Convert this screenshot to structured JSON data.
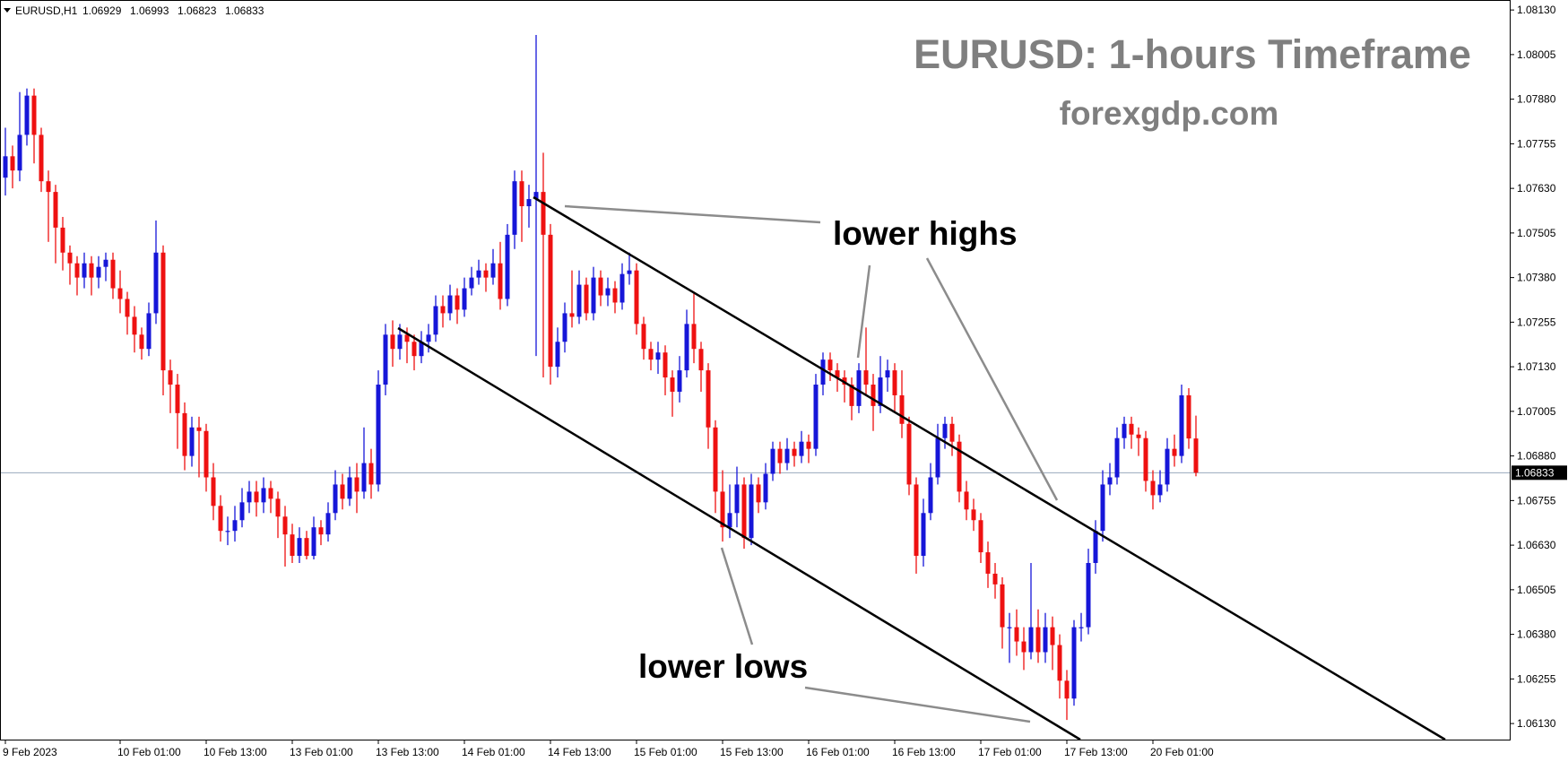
{
  "chart_data": {
    "type": "candlestick",
    "title": "EURUSD: 1-hours Timeframe",
    "subtitle": "forexgdp.com",
    "symbol": "EURUSD,H1",
    "header_ohlc": [
      1.06929,
      1.06993,
      1.06823,
      1.06833
    ],
    "current_price": 1.06833,
    "annotations": [
      "lower highs",
      "lower lows"
    ],
    "up_color": "#1616d8",
    "down_color": "#ee1111",
    "current_price_line_color": "#9aa9bd",
    "ylim": [
      1.06085,
      1.08158
    ],
    "yticks": [
      {
        "value": 1.0613,
        "label": "1.06130"
      },
      1.06255,
      {
        "value": 1.0638,
        "label": "1.06380"
      },
      1.06505,
      {
        "value": 1.0663,
        "label": "1.06630"
      },
      1.06755,
      {
        "value": 1.0688,
        "label": "1.06880"
      },
      1.07005,
      {
        "value": 1.0713,
        "label": "1.07130"
      },
      1.07255,
      {
        "value": 1.0738,
        "label": "1.07380"
      },
      1.07505,
      {
        "value": 1.0763,
        "label": "1.07630"
      },
      1.07755,
      {
        "value": 1.0788,
        "label": "1.07880"
      },
      1.08005,
      {
        "value": 1.0813,
        "label": "1.08130"
      }
    ],
    "xticks": [
      {
        "value": 0,
        "label": "9 Feb 2023"
      },
      {
        "value": 16,
        "label": "10 Feb 01:00"
      },
      {
        "value": 28,
        "label": "10 Feb 13:00"
      },
      {
        "value": 40,
        "label": "13 Feb 01:00"
      },
      {
        "value": 52,
        "label": "13 Feb 13:00"
      },
      {
        "value": 64,
        "label": "14 Feb 01:00"
      },
      {
        "value": 76,
        "label": "14 Feb 13:00"
      },
      {
        "value": 88,
        "label": "15 Feb 01:00"
      },
      {
        "value": 100,
        "label": "15 Feb 13:00"
      },
      {
        "value": 112,
        "label": "16 Feb 01:00"
      },
      {
        "value": 124,
        "label": "16 Feb 13:00"
      },
      {
        "value": 136,
        "label": "17 Feb 01:00"
      },
      {
        "value": 148,
        "label": "17 Feb 13:00"
      },
      {
        "value": 160,
        "label": "20 Feb 01:00"
      }
    ],
    "candles": [
      [
        1.0766,
        1.078,
        1.0761,
        1.0772
      ],
      [
        1.0772,
        1.0775,
        1.0763,
        1.0768
      ],
      [
        1.0768,
        1.079,
        1.0765,
        1.0778
      ],
      [
        1.0778,
        1.0791,
        1.0775,
        1.0789
      ],
      [
        1.0789,
        1.0791,
        1.077,
        1.0778
      ],
      [
        1.0778,
        1.078,
        1.0762,
        1.0765
      ],
      [
        1.0765,
        1.0768,
        1.0748,
        1.0762
      ],
      [
        1.0762,
        1.0764,
        1.0742,
        1.0752
      ],
      [
        1.0752,
        1.0755,
        1.074,
        1.0745
      ],
      [
        1.0745,
        1.0747,
        1.0736,
        1.0742
      ],
      [
        1.0742,
        1.0744,
        1.0733,
        1.0738
      ],
      [
        1.0738,
        1.0745,
        1.0735,
        1.0742
      ],
      [
        1.0742,
        1.0744,
        1.0733,
        1.0738
      ],
      [
        1.0738,
        1.0744,
        1.0735,
        1.0741
      ],
      [
        1.0741,
        1.0745,
        1.0737,
        1.0743
      ],
      [
        1.0743,
        1.0745,
        1.0732,
        1.0735
      ],
      [
        1.0735,
        1.074,
        1.0728,
        1.0732
      ],
      [
        1.0732,
        1.0734,
        1.0722,
        1.0727
      ],
      [
        1.0727,
        1.073,
        1.0717,
        1.0722
      ],
      [
        1.0722,
        1.0724,
        1.0715,
        1.0718
      ],
      [
        1.0718,
        1.0731,
        1.0716,
        1.0728
      ],
      [
        1.0728,
        1.0754,
        1.0725,
        1.0745
      ],
      [
        1.0745,
        1.0747,
        1.0705,
        1.0712
      ],
      [
        1.0712,
        1.0715,
        1.07,
        1.0708
      ],
      [
        1.0708,
        1.0711,
        1.069,
        1.07
      ],
      [
        1.07,
        1.0703,
        1.0684,
        1.0688
      ],
      [
        1.0688,
        1.0699,
        1.0685,
        1.0696
      ],
      [
        1.0696,
        1.0699,
        1.0682,
        1.0695
      ],
      [
        1.0695,
        1.0697,
        1.0678,
        1.0682
      ],
      [
        1.0682,
        1.0686,
        1.067,
        1.0674
      ],
      [
        1.0674,
        1.0677,
        1.0664,
        1.0667
      ],
      [
        1.0667,
        1.0671,
        1.0663,
        1.0667
      ],
      [
        1.0667,
        1.0674,
        1.0664,
        1.067
      ],
      [
        1.067,
        1.0679,
        1.0668,
        1.0675
      ],
      [
        1.0675,
        1.0681,
        1.0672,
        1.0678
      ],
      [
        1.0678,
        1.0681,
        1.0671,
        1.0675
      ],
      [
        1.0675,
        1.0682,
        1.0672,
        1.0679
      ],
      [
        1.0679,
        1.0681,
        1.0672,
        1.0676
      ],
      [
        1.0676,
        1.0678,
        1.0665,
        1.0671
      ],
      [
        1.0671,
        1.0674,
        1.0657,
        1.0666
      ],
      [
        1.0666,
        1.0669,
        1.0658,
        1.066
      ],
      [
        1.066,
        1.0668,
        1.0658,
        1.0665
      ],
      [
        1.0665,
        1.0667,
        1.0659,
        1.066
      ],
      [
        1.066,
        1.0671,
        1.0659,
        1.0668
      ],
      [
        1.0668,
        1.067,
        1.0663,
        1.0666
      ],
      [
        1.0666,
        1.0675,
        1.0664,
        1.0672
      ],
      [
        1.0672,
        1.0684,
        1.067,
        1.068
      ],
      [
        1.068,
        1.0683,
        1.0673,
        1.0676
      ],
      [
        1.0676,
        1.0685,
        1.0674,
        1.0682
      ],
      [
        1.0682,
        1.0686,
        1.0672,
        1.0678
      ],
      [
        1.0678,
        1.0696,
        1.0676,
        1.0686
      ],
      [
        1.0686,
        1.069,
        1.0676,
        1.068
      ],
      [
        1.068,
        1.0712,
        1.0678,
        1.0708
      ],
      [
        1.0708,
        1.0725,
        1.0705,
        1.0722
      ],
      [
        1.0722,
        1.0726,
        1.0713,
        1.0718
      ],
      [
        1.0718,
        1.0725,
        1.0715,
        1.0722
      ],
      [
        1.0722,
        1.0724,
        1.0714,
        1.072
      ],
      [
        1.072,
        1.0722,
        1.0712,
        1.0716
      ],
      [
        1.0716,
        1.0723,
        1.0714,
        1.072
      ],
      [
        1.072,
        1.0725,
        1.0717,
        1.0722
      ],
      [
        1.0722,
        1.0733,
        1.072,
        1.073
      ],
      [
        1.073,
        1.0733,
        1.0724,
        1.0728
      ],
      [
        1.0728,
        1.0736,
        1.0726,
        1.0733
      ],
      [
        1.0733,
        1.0735,
        1.0725,
        1.0729
      ],
      [
        1.0729,
        1.0738,
        1.0727,
        1.0735
      ],
      [
        1.0735,
        1.0741,
        1.0733,
        1.0738
      ],
      [
        1.0738,
        1.0743,
        1.0736,
        1.074
      ],
      [
        1.074,
        1.0742,
        1.0734,
        1.0738
      ],
      [
        1.0738,
        1.0746,
        1.0736,
        1.0742
      ],
      [
        1.0742,
        1.0748,
        1.0729,
        1.0732
      ],
      [
        1.0732,
        1.0753,
        1.073,
        1.075
      ],
      [
        1.075,
        1.0768,
        1.0746,
        1.0765
      ],
      [
        1.0765,
        1.0768,
        1.0748,
        1.0758
      ],
      [
        1.0758,
        1.0764,
        1.0752,
        1.076
      ],
      [
        1.076,
        1.0806,
        1.0716,
        1.0762
      ],
      [
        1.0762,
        1.0773,
        1.071,
        1.075
      ],
      [
        1.075,
        1.0753,
        1.0708,
        1.0713
      ],
      [
        1.0713,
        1.0724,
        1.071,
        1.072
      ],
      [
        1.072,
        1.0731,
        1.0717,
        1.0728
      ],
      [
        1.0728,
        1.074,
        1.0724,
        1.0727
      ],
      [
        1.0727,
        1.074,
        1.0725,
        1.0736
      ],
      [
        1.0736,
        1.0738,
        1.0726,
        1.0728
      ],
      [
        1.0728,
        1.0741,
        1.0726,
        1.0738
      ],
      [
        1.0738,
        1.074,
        1.073,
        1.0733
      ],
      [
        1.0733,
        1.0738,
        1.073,
        1.0735
      ],
      [
        1.0735,
        1.0737,
        1.0728,
        1.0731
      ],
      [
        1.0731,
        1.0742,
        1.0729,
        1.0739
      ],
      [
        1.0739,
        1.0745,
        1.0736,
        1.074
      ],
      [
        1.074,
        1.0742,
        1.0722,
        1.0725
      ],
      [
        1.0725,
        1.0727,
        1.0715,
        1.0718
      ],
      [
        1.0718,
        1.072,
        1.0712,
        1.0715
      ],
      [
        1.0715,
        1.072,
        1.0711,
        1.0717
      ],
      [
        1.0717,
        1.0719,
        1.0705,
        1.071
      ],
      [
        1.071,
        1.0712,
        1.0699,
        1.0706
      ],
      [
        1.0706,
        1.0716,
        1.0703,
        1.0712
      ],
      [
        1.0712,
        1.0729,
        1.071,
        1.0725
      ],
      [
        1.0725,
        1.0734,
        1.0714,
        1.0718
      ],
      [
        1.0718,
        1.072,
        1.0706,
        1.0712
      ],
      [
        1.0712,
        1.0714,
        1.069,
        1.0696
      ],
      [
        1.0696,
        1.0698,
        1.0672,
        1.0678
      ],
      [
        1.0678,
        1.0684,
        1.0664,
        1.0668
      ],
      [
        1.0668,
        1.068,
        1.0665,
        1.0672
      ],
      [
        1.0672,
        1.0685,
        1.0668,
        1.068
      ],
      [
        1.068,
        1.0682,
        1.0662,
        1.0665
      ],
      [
        1.0665,
        1.0683,
        1.0663,
        1.068
      ],
      [
        1.068,
        1.0682,
        1.0672,
        1.0675
      ],
      [
        1.0675,
        1.0686,
        1.0673,
        1.0683
      ],
      [
        1.0683,
        1.0692,
        1.0681,
        1.069
      ],
      [
        1.069,
        1.0692,
        1.0683,
        1.0686
      ],
      [
        1.0686,
        1.0693,
        1.0684,
        1.069
      ],
      [
        1.069,
        1.0692,
        1.0685,
        1.0688
      ],
      [
        1.0688,
        1.0695,
        1.0686,
        1.0692
      ],
      [
        1.0692,
        1.0694,
        1.0686,
        1.069
      ],
      [
        1.069,
        1.0711,
        1.0688,
        1.0708
      ],
      [
        1.0708,
        1.0717,
        1.0705,
        1.0715
      ],
      [
        1.0715,
        1.0717,
        1.0709,
        1.0712
      ],
      [
        1.0712,
        1.0714,
        1.0706,
        1.071
      ],
      [
        1.071,
        1.0712,
        1.0703,
        1.0708
      ],
      [
        1.0708,
        1.071,
        1.0698,
        1.0702
      ],
      [
        1.0702,
        1.0714,
        1.07,
        1.0712
      ],
      [
        1.0712,
        1.0724,
        1.0705,
        1.0708
      ],
      [
        1.0708,
        1.0711,
        1.0695,
        1.0702
      ],
      [
        1.0702,
        1.0716,
        1.07,
        1.071
      ],
      [
        1.071,
        1.0715,
        1.0706,
        1.0712
      ],
      [
        1.0712,
        1.0714,
        1.07,
        1.0705
      ],
      [
        1.0705,
        1.0712,
        1.0693,
        1.0697
      ],
      [
        1.0697,
        1.0699,
        1.0677,
        1.068
      ],
      [
        1.068,
        1.0682,
        1.0655,
        1.066
      ],
      [
        1.066,
        1.0676,
        1.0657,
        1.0672
      ],
      [
        1.0672,
        1.0686,
        1.067,
        1.0682
      ],
      [
        1.0682,
        1.0697,
        1.068,
        1.0693
      ],
      [
        1.0693,
        1.0699,
        1.069,
        1.0697
      ],
      [
        1.0697,
        1.0699,
        1.0688,
        1.0692
      ],
      [
        1.0692,
        1.0694,
        1.0675,
        1.0678
      ],
      [
        1.0678,
        1.0681,
        1.067,
        1.0673
      ],
      [
        1.0673,
        1.0676,
        1.0667,
        1.067
      ],
      [
        1.067,
        1.0672,
        1.0658,
        1.0661
      ],
      [
        1.0661,
        1.0664,
        1.0651,
        1.0655
      ],
      [
        1.0655,
        1.0658,
        1.0648,
        1.0652
      ],
      [
        1.0652,
        1.0654,
        1.0634,
        1.064
      ],
      [
        1.064,
        1.0644,
        1.063,
        1.064
      ],
      [
        1.064,
        1.0645,
        1.0632,
        1.0636
      ],
      [
        1.0636,
        1.064,
        1.0628,
        1.0633
      ],
      [
        1.0633,
        1.0658,
        1.0631,
        1.064
      ],
      [
        1.064,
        1.0645,
        1.063,
        1.0633
      ],
      [
        1.0633,
        1.0644,
        1.063,
        1.064
      ],
      [
        1.064,
        1.0643,
        1.0628,
        1.0635
      ],
      [
        1.0635,
        1.0638,
        1.062,
        1.0625
      ],
      [
        1.0625,
        1.0628,
        1.0614,
        1.062
      ],
      [
        1.062,
        1.0642,
        1.0618,
        1.064
      ],
      [
        1.064,
        1.0644,
        1.0636,
        1.064
      ],
      [
        1.064,
        1.0662,
        1.0638,
        1.0658
      ],
      [
        1.0658,
        1.067,
        1.0655,
        1.0667
      ],
      [
        1.0667,
        1.0684,
        1.0664,
        1.068
      ],
      [
        1.068,
        1.0686,
        1.0677,
        1.0682
      ],
      [
        1.0682,
        1.0696,
        1.068,
        1.0693
      ],
      [
        1.0693,
        1.0699,
        1.069,
        1.0697
      ],
      [
        1.0697,
        1.0699,
        1.069,
        1.0694
      ],
      [
        1.0694,
        1.0696,
        1.0688,
        1.0693
      ],
      [
        1.0693,
        1.0695,
        1.0678,
        1.0681
      ],
      [
        1.0681,
        1.0684,
        1.0673,
        1.0677
      ],
      [
        1.0677,
        1.0684,
        1.0675,
        1.068
      ],
      [
        1.068,
        1.0693,
        1.0678,
        1.069
      ],
      [
        1.069,
        1.0694,
        1.0685,
        1.0688
      ],
      [
        1.0688,
        1.0708,
        1.0686,
        1.0705
      ],
      [
        1.0705,
        1.0707,
        1.069,
        1.06929
      ],
      [
        1.06929,
        1.06993,
        1.06823,
        1.06833
      ]
    ]
  }
}
